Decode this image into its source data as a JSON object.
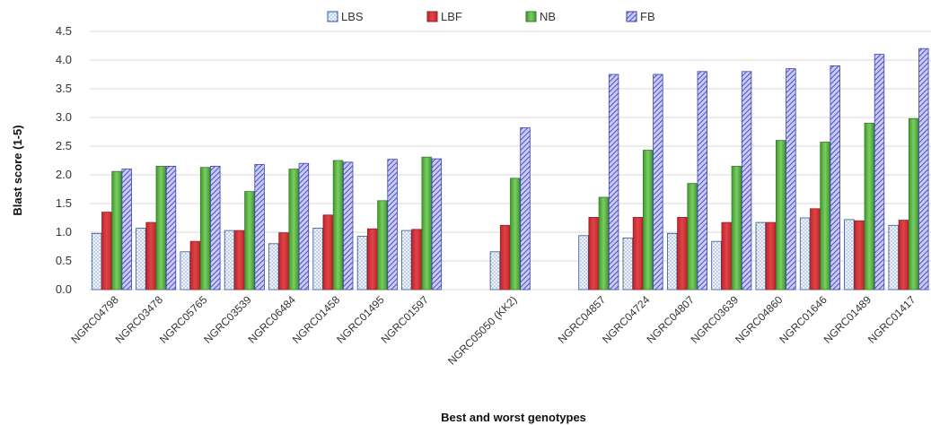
{
  "chart_data": {
    "type": "bar",
    "title": "",
    "xlabel": "Best and worst genotypes",
    "ylabel": "Blast score (1-5)",
    "ylim": [
      0,
      4.5
    ],
    "yticks": [
      "0.0",
      "0.5",
      "1.0",
      "1.5",
      "2.0",
      "2.5",
      "3.0",
      "3.5",
      "4.0",
      "4.5"
    ],
    "grid": true,
    "legend_position": "top-center",
    "categories": [
      "NGRC04798",
      "NGRC03478",
      "NGRC05765",
      "NGRC03539",
      "NGRC06484",
      "NGRC01458",
      "NGRC01495",
      "NGRC01597",
      "",
      "NGRC05050 (KK2)",
      "",
      "NGRC04857",
      "NGRC04724",
      "NGRC04807",
      "NGRC03639",
      "NGRC04860",
      "NGRC01646",
      "NGRC01489",
      "NGRC01417"
    ],
    "series": [
      {
        "name": "LBS",
        "color": "#dce6f2",
        "stroke": "#2f5597",
        "pattern": "dots",
        "values": [
          0.98,
          1.07,
          0.66,
          1.03,
          0.8,
          1.07,
          0.93,
          1.03,
          null,
          0.66,
          null,
          0.94,
          0.9,
          0.98,
          0.84,
          1.17,
          1.25,
          1.22,
          1.12
        ]
      },
      {
        "name": "LBF",
        "color": "#d9373b",
        "stroke": "#9c1e22",
        "pattern": "solid",
        "values": [
          1.35,
          1.17,
          0.84,
          1.03,
          0.99,
          1.3,
          1.06,
          1.05,
          null,
          1.12,
          null,
          1.26,
          1.26,
          1.26,
          1.17,
          1.17,
          1.41,
          1.2,
          1.21
        ]
      },
      {
        "name": "NB",
        "color": "#5cbd47",
        "stroke": "#3a7d2a",
        "pattern": "gradient",
        "values": [
          2.06,
          2.15,
          2.13,
          1.71,
          2.1,
          2.25,
          1.55,
          2.31,
          null,
          1.94,
          null,
          1.61,
          2.43,
          1.85,
          2.15,
          2.6,
          2.57,
          2.9,
          2.98
        ]
      },
      {
        "name": "FB",
        "color": "#8a8ee6",
        "stroke": "#3a3fb0",
        "pattern": "hatch",
        "values": [
          2.1,
          2.15,
          2.15,
          2.18,
          2.2,
          2.22,
          2.27,
          2.28,
          null,
          2.82,
          null,
          3.75,
          3.75,
          3.8,
          3.8,
          3.85,
          3.9,
          4.1,
          4.2
        ]
      }
    ]
  }
}
